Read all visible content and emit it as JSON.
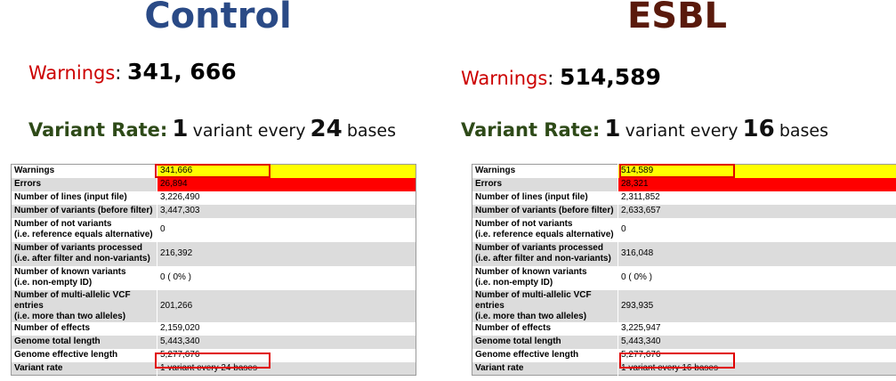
{
  "colors": {
    "control_title": "#2a4a86",
    "esbl_title": "#5a1a0c",
    "warnings_label": "#cc0000",
    "rate_label": "#2e4a18",
    "highlight_yellow": "#ffff00",
    "highlight_red": "#ff0000",
    "box_outline": "#e00000"
  },
  "panels": [
    {
      "title": "Control",
      "warnings_label": "Warnings",
      "warnings_value": "341, 666",
      "rate_label": "Variant Rate:",
      "rate_count": "1",
      "rate_mid": "variant every",
      "rate_bases": "24",
      "rate_suffix": "bases",
      "table": {
        "warnings": {
          "label": "Warnings",
          "value": "341,666"
        },
        "errors": {
          "label": "Errors",
          "value": "26,894"
        },
        "lines": {
          "label": "Number of lines (input file)",
          "value": "3,226,490"
        },
        "variants": {
          "label": "Number of variants (before filter)",
          "value": "3,447,303"
        },
        "not_variants": {
          "label1": "Number of not variants",
          "label2": "(i.e. reference equals alternative)",
          "value": "0"
        },
        "processed": {
          "label1": "Number of variants processed",
          "label2": "(i.e. after filter and non-variants)",
          "value": "216,392"
        },
        "known": {
          "label1": "Number of known variants",
          "label2": "(i.e. non-empty ID)",
          "value": "0 ( 0% )"
        },
        "multi": {
          "label1": "Number of multi-allelic VCF entries",
          "label2": "(i.e. more than two alleles)",
          "value": "201,266"
        },
        "effects": {
          "label": "Number of effects",
          "value": "2,159,020"
        },
        "total_length": {
          "label": "Genome total length",
          "value": "5,443,340"
        },
        "effective_length": {
          "label": "Genome effective length",
          "value": "5,277,676"
        },
        "rate": {
          "label": "Variant rate",
          "value": "1 variant every 24 bases"
        }
      }
    },
    {
      "title": "ESBL",
      "warnings_label": "Warnings",
      "warnings_value": "514,589",
      "rate_label": "Variant Rate:",
      "rate_count": "1",
      "rate_mid": "variant every",
      "rate_bases": "16",
      "rate_suffix": "bases",
      "table": {
        "warnings": {
          "label": "Warnings",
          "value": "514,589"
        },
        "errors": {
          "label": "Errors",
          "value": "28,321"
        },
        "lines": {
          "label": "Number of lines (input file)",
          "value": "2,311,852"
        },
        "variants": {
          "label": "Number of variants (before filter)",
          "value": "2,633,657"
        },
        "not_variants": {
          "label1": "Number of not variants",
          "label2": "(i.e. reference equals alternative)",
          "value": "0"
        },
        "processed": {
          "label1": "Number of variants processed",
          "label2": "(i.e. after filter and non-variants)",
          "value": "316,048"
        },
        "known": {
          "label1": "Number of known variants",
          "label2": "(i.e. non-empty ID)",
          "value": "0 ( 0% )"
        },
        "multi": {
          "label1": "Number of multi-allelic VCF entries",
          "label2": "(i.e. more than two alleles)",
          "value": "293,935"
        },
        "effects": {
          "label": "Number of effects",
          "value": "3,225,947"
        },
        "total_length": {
          "label": "Genome total length",
          "value": "5,443,340"
        },
        "effective_length": {
          "label": "Genome effective length",
          "value": "5,277,676"
        },
        "rate": {
          "label": "Variant rate",
          "value": "1 variant every 16 bases"
        }
      }
    }
  ]
}
